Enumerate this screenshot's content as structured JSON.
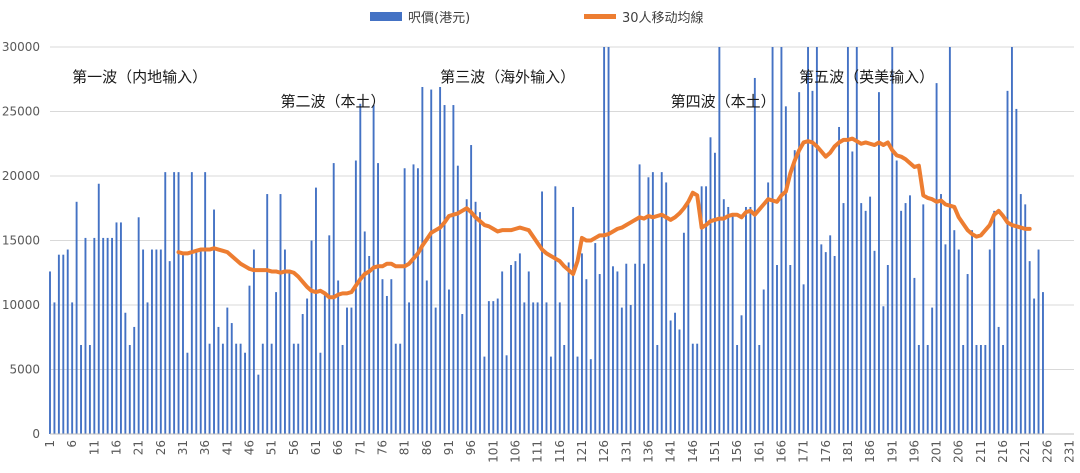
{
  "chart_data": {
    "type": "bar",
    "title": "",
    "xlabel": "",
    "ylabel": "",
    "ylim": [
      0,
      30000
    ],
    "y_ticks": [
      0,
      5000,
      10000,
      15000,
      20000,
      25000,
      30000
    ],
    "x_ticks": [
      1,
      6,
      11,
      16,
      21,
      26,
      31,
      36,
      41,
      46,
      51,
      56,
      61,
      66,
      71,
      76,
      81,
      86,
      91,
      96,
      101,
      106,
      111,
      116,
      121,
      126,
      131,
      136,
      141,
      146,
      151,
      156,
      161,
      166,
      171,
      176,
      181,
      186,
      191,
      196,
      201,
      206,
      211,
      216,
      221,
      226,
      231
    ],
    "x_range": [
      1,
      232
    ],
    "grid": true,
    "legend_placement": "top-center",
    "legend": [
      "呎價(港元)",
      "30人移动均線"
    ],
    "colors": {
      "bar": "#4472C4",
      "line": "#ED7D31",
      "grid": "#D9D9D9",
      "axis": "#BFBFBF"
    },
    "series": [
      {
        "name": "呎價(港元)",
        "type": "bar",
        "values": [
          12600,
          10200,
          13900,
          13900,
          14300,
          10200,
          18000,
          6900,
          15200,
          6900,
          15200,
          19400,
          15200,
          15200,
          15200,
          16400,
          16400,
          9400,
          6900,
          8300,
          16800,
          14300,
          10200,
          14300,
          14300,
          14300,
          20300,
          13400,
          20300,
          20300,
          14000,
          6300,
          20300,
          14300,
          14300,
          20300,
          7000,
          17400,
          8300,
          7000,
          9800,
          8600,
          7000,
          7000,
          6300,
          11500,
          14300,
          4600,
          7000,
          18600,
          7000,
          11000,
          18600,
          14300,
          12600,
          7000,
          7000,
          9300,
          10500,
          15000,
          19100,
          6300,
          11000,
          15400,
          21000,
          11900,
          6900,
          9800,
          9800,
          21200,
          25600,
          15700,
          13800,
          25500,
          21000,
          12000,
          10700,
          12000,
          7000,
          7000,
          20600,
          10200,
          20900,
          20600,
          26900,
          11900,
          26700,
          9800,
          26900,
          25500,
          11200,
          25500,
          20800,
          9300,
          18200,
          22400,
          18000,
          17200,
          6000,
          10300,
          10300,
          10500,
          12600,
          6100,
          13100,
          13400,
          14000,
          10200,
          12600,
          10200,
          10200,
          18800,
          10200,
          6000,
          19200,
          10200,
          6900,
          13300,
          17600,
          6000,
          14000,
          12000,
          5800,
          14800,
          12400,
          30000,
          30000,
          13000,
          12600,
          9800,
          13200,
          10000,
          13200,
          20900,
          13200,
          19900,
          20300,
          6900,
          20300,
          19500,
          8800,
          9400,
          8100,
          15600,
          18100,
          7000,
          7000,
          19200,
          19200,
          23000,
          21800,
          30000,
          18200,
          17600,
          17100,
          6900,
          9200,
          17600,
          17600,
          27600,
          6900,
          11200,
          19500,
          30000,
          13100,
          30000,
          25400,
          13100,
          22000,
          26500,
          11600,
          30000,
          26600,
          30000,
          14700,
          14100,
          15400,
          13800,
          23800,
          17900,
          30000,
          21900,
          30000,
          17900,
          17300,
          18400,
          14200,
          26500,
          9900,
          13100,
          30000,
          21200,
          17300,
          17900,
          18500,
          12100,
          6900,
          17800,
          6900,
          9800,
          27200,
          18600,
          14700,
          30000,
          15800,
          14300,
          6900,
          12400,
          15800,
          6900,
          6900,
          6900,
          14300,
          17300,
          8300,
          6900,
          26600,
          30000,
          25200,
          18600,
          17800,
          13400,
          10500,
          14300,
          11000
        ]
      },
      {
        "name": "30人移动均線",
        "type": "line",
        "start_x": 30,
        "values": [
          14100,
          14000,
          14000,
          14100,
          14200,
          14300,
          14300,
          14300,
          14400,
          14300,
          14200,
          14100,
          13800,
          13500,
          13200,
          13000,
          12800,
          12700,
          12700,
          12700,
          12700,
          12600,
          12600,
          12500,
          12600,
          12600,
          12500,
          12200,
          11800,
          11400,
          11100,
          11000,
          11100,
          10900,
          10600,
          10600,
          10800,
          10900,
          10900,
          11000,
          11500,
          12000,
          12400,
          12600,
          12900,
          13000,
          13000,
          13200,
          13200,
          13000,
          13000,
          13000,
          13200,
          13600,
          14000,
          14600,
          15100,
          15600,
          15800,
          16000,
          16400,
          16900,
          17000,
          17100,
          17300,
          17500,
          17200,
          16800,
          16500,
          16200,
          16100,
          15900,
          15700,
          15800,
          15800,
          15800,
          15900,
          16000,
          15900,
          15800,
          15300,
          14800,
          14300,
          14000,
          13800,
          13600,
          13400,
          13000,
          12700,
          12400,
          13400,
          15200,
          15000,
          15000,
          15200,
          15400,
          15400,
          15500,
          15700,
          15900,
          16000,
          16200,
          16400,
          16600,
          16800,
          16700,
          16900,
          16800,
          16900,
          17000,
          16800,
          16600,
          16800,
          17100,
          17500,
          18000,
          18700,
          18500,
          16000,
          16200,
          16500,
          16600,
          16700,
          16700,
          16900,
          17000,
          17000,
          16800,
          17200,
          17300,
          17000,
          17400,
          17800,
          18200,
          18100,
          18000,
          18500,
          18800,
          20200,
          21200,
          22000,
          22600,
          22700,
          22600,
          22300,
          21900,
          21500,
          21800,
          22300,
          22600,
          22800,
          22800,
          22900,
          22700,
          22500,
          22600,
          22500,
          22400,
          22600,
          22400,
          22600,
          22000,
          21600,
          21500,
          21300,
          21000,
          20700,
          20800,
          18500,
          18300,
          18200,
          18000,
          18100,
          17800,
          17700,
          17600,
          16800,
          16300,
          15800,
          15500,
          15300,
          15400,
          15800,
          16200,
          17000,
          17300,
          16900,
          16400,
          16200,
          16100,
          16000,
          15900,
          15900
        ]
      }
    ],
    "annotations": [
      {
        "text": "第一波（内地输入）",
        "x": 6,
        "y": 27300,
        "anchor": "start"
      },
      {
        "text": "第二波（本土）",
        "x": 53,
        "y": 25400,
        "anchor": "start"
      },
      {
        "text": "第三波（海外输入）",
        "x": 89,
        "y": 27300,
        "anchor": "start"
      },
      {
        "text": "第四波（本土）",
        "x": 141,
        "y": 25400,
        "anchor": "start"
      },
      {
        "text": "第五波（英美输入）",
        "x": 170,
        "y": 27300,
        "anchor": "start"
      }
    ]
  }
}
